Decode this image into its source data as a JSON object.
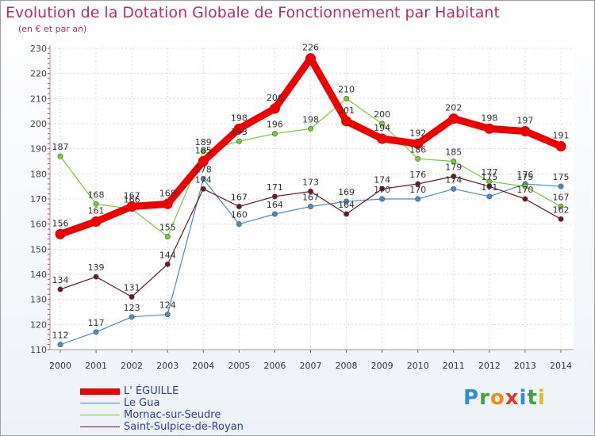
{
  "chart_data": {
    "type": "line",
    "title": "Evolution de la Dotation Globale de Fonctionnement par Habitant",
    "subtitle": "(en € et par an)",
    "xlabel": "",
    "ylabel": "",
    "categories": [
      "2000",
      "2001",
      "2002",
      "2003",
      "2004",
      "2005",
      "2006",
      "2007",
      "2008",
      "2009",
      "2010",
      "2011",
      "2012",
      "2013",
      "2014"
    ],
    "ylim": [
      110,
      230
    ],
    "yticks": [
      110,
      120,
      130,
      140,
      150,
      160,
      170,
      180,
      190,
      200,
      210,
      220,
      230
    ],
    "grid": true,
    "legend_position": "bottom-left",
    "series": [
      {
        "name": "Le Gua",
        "color": "#4a8cc4",
        "values": [
          112,
          117,
          123,
          124,
          178,
          160,
          164,
          167,
          169,
          170,
          170,
          174,
          171,
          176,
          175
        ]
      },
      {
        "name": "Mornac-sur-Seudre",
        "color": "#77cc33",
        "values": [
          187,
          168,
          166,
          155,
          189,
          193,
          196,
          198,
          210,
          200,
          186,
          185,
          177,
          175,
          167
        ]
      },
      {
        "name": "Saint-Sulpice-de-Royan",
        "color": "#6b1a22",
        "values": [
          134,
          139,
          131,
          144,
          174,
          167,
          171,
          173,
          164,
          174,
          176,
          179,
          175,
          170,
          162
        ]
      },
      {
        "name": "L' ÉGUILLE",
        "color": "#ee0000",
        "values": [
          156,
          161,
          167,
          168,
          185,
          198,
          206,
          226,
          201,
          194,
          192,
          202,
          198,
          197,
          191
        ]
      }
    ]
  },
  "legend": {
    "items": [
      {
        "name": "L' ÉGUILLE",
        "color": "#ee0000",
        "text_color": "#2b3ea8"
      },
      {
        "name": "Le Gua",
        "color": "#4a8cc4",
        "text_color": "#2b3ea8"
      },
      {
        "name": "Mornac-sur-Seudre",
        "color": "#77cc33",
        "text_color": "#2b3ea8"
      },
      {
        "name": "Saint-Sulpice-de-Royan",
        "color": "#6b1a22",
        "text_color": "#2b3ea8"
      }
    ]
  },
  "brand": {
    "letters": [
      {
        "char": "P",
        "color": "#2f8fd6"
      },
      {
        "char": "r",
        "color": "#39a53c"
      },
      {
        "char": "o",
        "color": "#f08a1c"
      },
      {
        "char": "x",
        "color": "#e03a2f"
      },
      {
        "char": "i",
        "color": "#2f8fd6"
      },
      {
        "char": "t",
        "color": "#39a53c"
      },
      {
        "char": "i",
        "color": "#f0b41c"
      }
    ]
  }
}
